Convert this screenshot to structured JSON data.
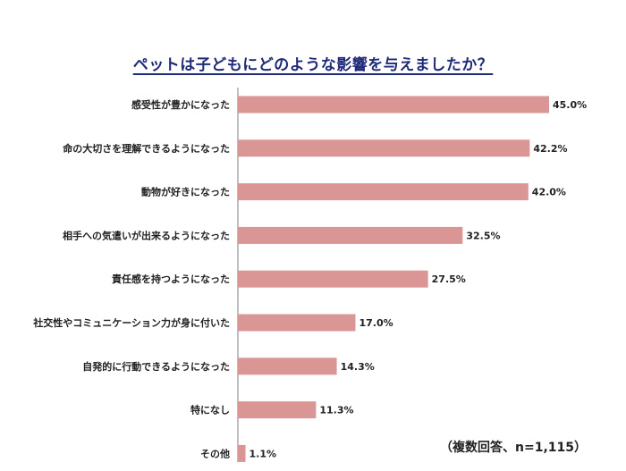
{
  "chart_data": {
    "type": "bar",
    "orientation": "horizontal",
    "title": "ペットは子どもにどのような影響を与えましたか？",
    "categories": [
      "感受性が豊かになった",
      "命の大切さを理解できるようになった",
      "動物が好きになった",
      "相手への気遣いが出来るようになった",
      "責任感を持つようになった",
      "社交性やコミュニケーション力が身に付いた",
      "自発的に行動できるようになった",
      "特になし",
      "その他"
    ],
    "values": [
      45.0,
      42.2,
      42.0,
      32.5,
      27.5,
      17.0,
      14.3,
      11.3,
      1.1
    ],
    "value_labels": [
      "45.0%",
      "42.2%",
      "42.0%",
      "32.5%",
      "27.5%",
      "17.0%",
      "14.3%",
      "11.3%",
      "1.1%"
    ],
    "bar_color": "#d99694",
    "xlim": [
      0,
      45
    ],
    "grid": false
  },
  "note": "（複数回答、n=1,115）"
}
